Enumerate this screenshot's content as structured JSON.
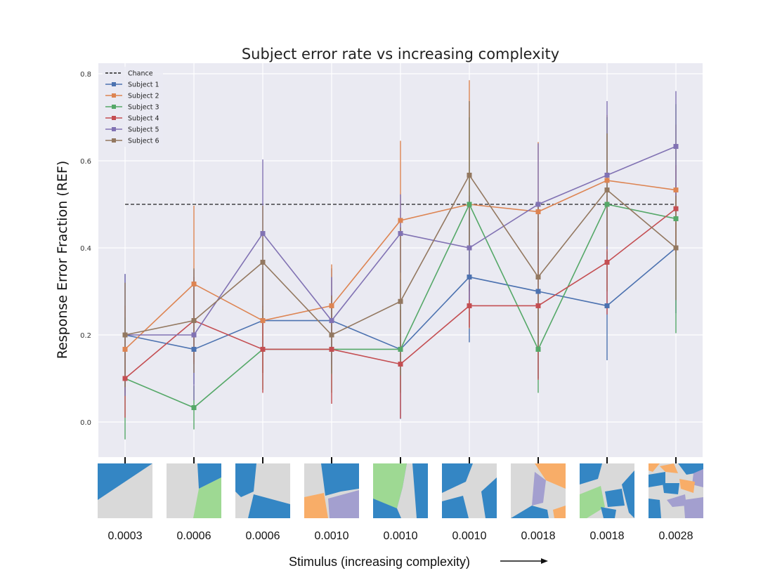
{
  "chart_data": {
    "type": "line",
    "title": "Subject error rate vs increasing complexity",
    "xlabel": "Stimulus (increasing complexity)",
    "ylabel": "Response Error Fraction (REF)",
    "ylim": [
      -0.08,
      0.82
    ],
    "yticks": [
      "0.0",
      "0.2",
      "0.4",
      "0.6",
      "0.8"
    ],
    "categories": [
      "0.0003",
      "0.0006",
      "0.0006",
      "0.0010",
      "0.0010",
      "0.0010",
      "0.0018",
      "0.0018",
      "0.0028"
    ],
    "grid": true,
    "legend_position": "top-left",
    "chance": {
      "name": "Chance",
      "value": 0.5,
      "color": "#222222"
    },
    "series": [
      {
        "name": "Subject 1",
        "color": "#4c72b0",
        "values": [
          0.2,
          0.167,
          0.233,
          0.233,
          0.167,
          0.333,
          0.3,
          0.267,
          0.4
        ],
        "err": [
          0.14,
          0.08,
          0.12,
          0.12,
          0.16,
          0.15,
          0.2,
          0.125,
          0.15
        ]
      },
      {
        "name": "Subject 2",
        "color": "#dd8452",
        "values": [
          0.167,
          0.317,
          0.233,
          0.267,
          0.463,
          0.5,
          0.483,
          0.555,
          0.533
        ],
        "err": [
          0.1,
          0.18,
          0.12,
          0.095,
          0.183,
          0.285,
          0.16,
          0.15,
          0.15
        ]
      },
      {
        "name": "Subject 3",
        "color": "#55a868",
        "values": [
          0.1,
          0.033,
          0.167,
          0.167,
          0.167,
          0.5,
          0.167,
          0.5,
          0.467
        ],
        "err": [
          0.14,
          0.05,
          0.093,
          0.1,
          0.1,
          0.2,
          0.1,
          0.2,
          0.263
        ]
      },
      {
        "name": "Subject 4",
        "color": "#c44e52",
        "values": [
          0.1,
          0.233,
          0.167,
          0.167,
          0.133,
          0.267,
          0.267,
          0.367,
          0.49
        ],
        "err": [
          0.09,
          0.1,
          0.1,
          0.125,
          0.125,
          0.05,
          0.17,
          0.12,
          0.1
        ]
      },
      {
        "name": "Subject 5",
        "color": "#8172b3",
        "values": [
          0.2,
          0.2,
          0.433,
          0.233,
          0.433,
          0.4,
          0.5,
          0.567,
          0.633
        ],
        "err": [
          0.14,
          0.15,
          0.17,
          0.1,
          0.09,
          0.12,
          0.14,
          0.17,
          0.127
        ]
      },
      {
        "name": "Subject 6",
        "color": "#937860",
        "values": [
          0.2,
          0.233,
          0.367,
          0.2,
          0.277,
          0.567,
          0.333,
          0.533,
          0.4
        ],
        "err": [
          0.12,
          0.12,
          0.13,
          0.09,
          0.17,
          0.17,
          0.17,
          0.13,
          0.12
        ]
      }
    ]
  },
  "stimuli": {
    "colors": {
      "blue": "#3486c4",
      "gray": "#d9d9d9",
      "green": "#9ed993",
      "orange": "#f8ad68",
      "purple": "#a39fcf"
    }
  },
  "xlabel_arrow": "⟶"
}
